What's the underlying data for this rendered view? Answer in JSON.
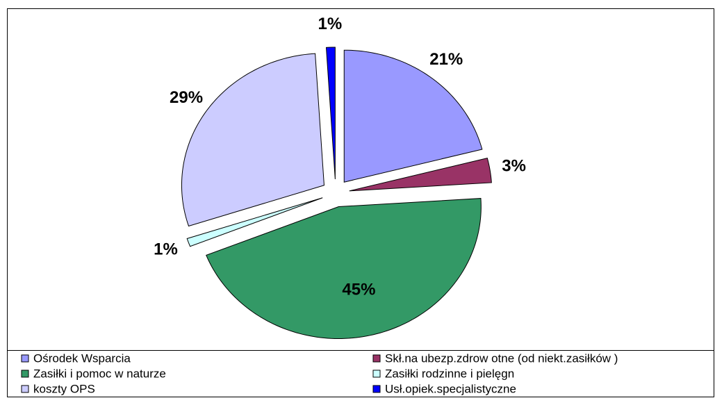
{
  "chart_data": {
    "type": "pie",
    "categories": [
      "Ośrodek Wsparcia",
      "Skł.na ubezp.zdrow otne (od  niekt.zasiłków )",
      "Zasiłki i pomoc w  naturze",
      "Zasiłki rodzinne i pielęgn",
      "koszty OPS",
      "Usł.opiek.specjalistyczne"
    ],
    "values": [
      21,
      3,
      45,
      1,
      29,
      1
    ],
    "value_labels": [
      "21%",
      "3%",
      "45%",
      "1%",
      "29%",
      "1%"
    ],
    "colors": [
      "#9999ff",
      "#993366",
      "#339966",
      "#ccffff",
      "#ccccff",
      "#0000ff"
    ],
    "legend": "bottom"
  }
}
